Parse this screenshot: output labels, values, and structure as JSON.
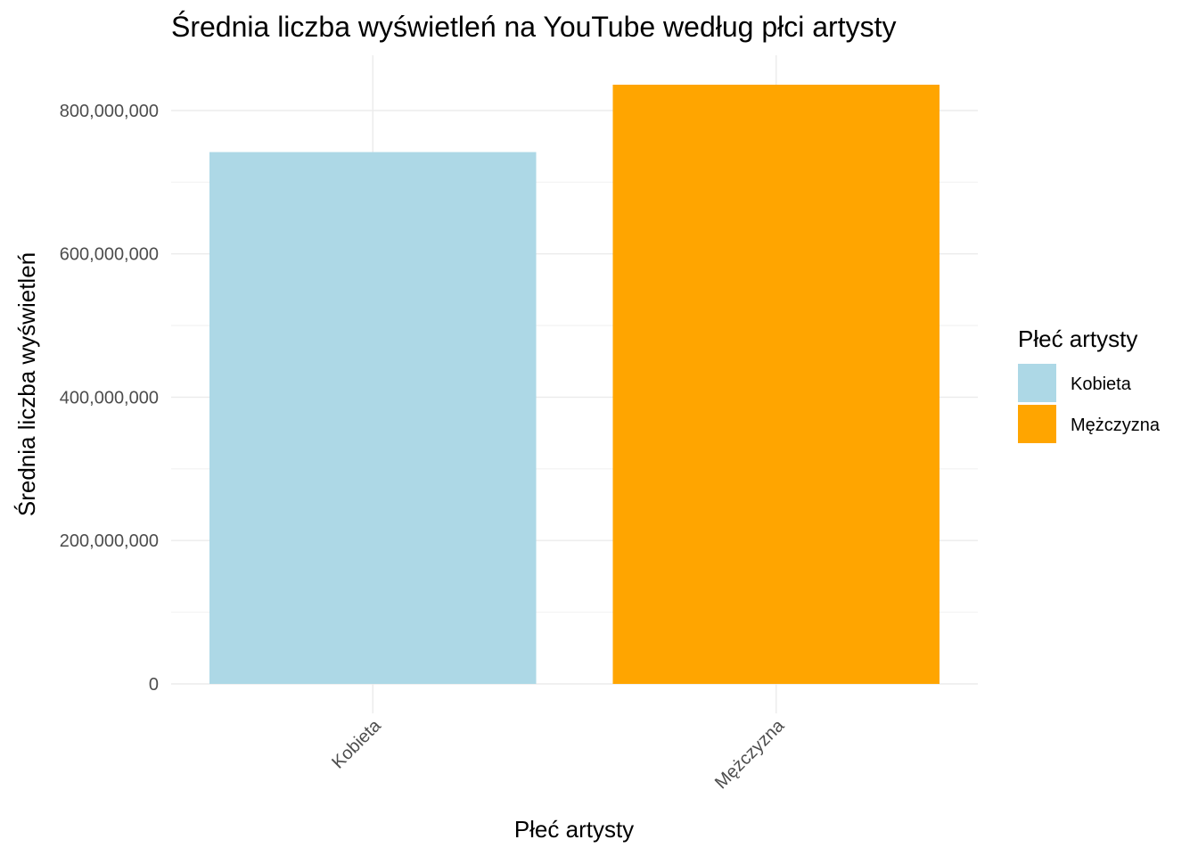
{
  "chart_data": {
    "type": "bar",
    "title": "Średnia liczba wyświetleń na YouTube według płci artysty",
    "xlabel": "Płeć artysty",
    "ylabel": "Średnia liczba wyświetleń",
    "categories": [
      "Kobieta",
      "Mężczyzna"
    ],
    "values": [
      742000000,
      836000000
    ],
    "colors": [
      "#ADD8E6",
      "#FFA500"
    ],
    "ylim": [
      0,
      836000000
    ],
    "yticks": [
      0,
      200000000,
      400000000,
      600000000,
      800000000
    ],
    "ytick_labels": [
      "0",
      "200,000,000",
      "400,000,000",
      "600,000,000",
      "800,000,000"
    ],
    "grid": true,
    "legend": {
      "title": "Płeć artysty",
      "position": "right",
      "entries": [
        "Kobieta",
        "Mężczyzna"
      ]
    }
  }
}
